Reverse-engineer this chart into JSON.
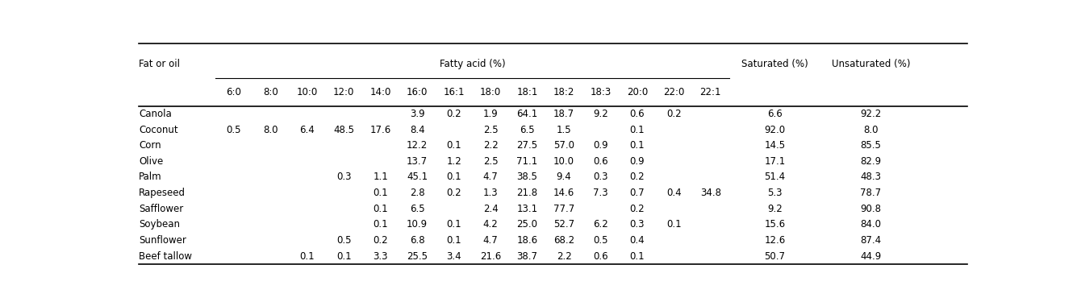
{
  "row_label": "Fat or oil",
  "fa_cols": [
    "6:0",
    "8:0",
    "10:0",
    "12:0",
    "14:0",
    "16:0",
    "16:1",
    "18:0",
    "18:1",
    "18:2",
    "18:3",
    "20:0",
    "22:0",
    "22:1"
  ],
  "rows": [
    {
      "name": "Canola",
      "6:0": "",
      "8:0": "",
      "10:0": "",
      "12:0": "",
      "14:0": "",
      "16:0": "3.9",
      "16:1": "0.2",
      "18:0": "1.9",
      "18:1": "64.1",
      "18:2": "18.7",
      "18:3": "9.2",
      "20:0": "0.6",
      "22:0": "0.2",
      "22:1": "",
      "sat": "6.6",
      "unsat": "92.2"
    },
    {
      "name": "Coconut",
      "6:0": "0.5",
      "8:0": "8.0",
      "10:0": "6.4",
      "12:0": "48.5",
      "14:0": "17.6",
      "16:0": "8.4",
      "16:1": "",
      "18:0": "2.5",
      "18:1": "6.5",
      "18:2": "1.5",
      "18:3": "",
      "20:0": "0.1",
      "22:0": "",
      "22:1": "",
      "sat": "92.0",
      "unsat": "8.0"
    },
    {
      "name": "Corn",
      "6:0": "",
      "8:0": "",
      "10:0": "",
      "12:0": "",
      "14:0": "",
      "16:0": "12.2",
      "16:1": "0.1",
      "18:0": "2.2",
      "18:1": "27.5",
      "18:2": "57.0",
      "18:3": "0.9",
      "20:0": "0.1",
      "22:0": "",
      "22:1": "",
      "sat": "14.5",
      "unsat": "85.5"
    },
    {
      "name": "Olive",
      "6:0": "",
      "8:0": "",
      "10:0": "",
      "12:0": "",
      "14:0": "",
      "16:0": "13.7",
      "16:1": "1.2",
      "18:0": "2.5",
      "18:1": "71.1",
      "18:2": "10.0",
      "18:3": "0.6",
      "20:0": "0.9",
      "22:0": "",
      "22:1": "",
      "sat": "17.1",
      "unsat": "82.9"
    },
    {
      "name": "Palm",
      "6:0": "",
      "8:0": "",
      "10:0": "",
      "12:0": "0.3",
      "14:0": "1.1",
      "16:0": "45.1",
      "16:1": "0.1",
      "18:0": "4.7",
      "18:1": "38.5",
      "18:2": "9.4",
      "18:3": "0.3",
      "20:0": "0.2",
      "22:0": "",
      "22:1": "",
      "sat": "51.4",
      "unsat": "48.3"
    },
    {
      "name": "Rapeseed",
      "6:0": "",
      "8:0": "",
      "10:0": "",
      "12:0": "",
      "14:0": "0.1",
      "16:0": "2.8",
      "16:1": "0.2",
      "18:0": "1.3",
      "18:1": "21.8",
      "18:2": "14.6",
      "18:3": "7.3",
      "20:0": "0.7",
      "22:0": "0.4",
      "22:1": "34.8",
      "sat": "5.3",
      "unsat": "78.7"
    },
    {
      "name": "Safflower",
      "6:0": "",
      "8:0": "",
      "10:0": "",
      "12:0": "",
      "14:0": "0.1",
      "16:0": "6.5",
      "16:1": "",
      "18:0": "2.4",
      "18:1": "13.1",
      "18:2": "77.7",
      "18:3": "",
      "20:0": "0.2",
      "22:0": "",
      "22:1": "",
      "sat": "9.2",
      "unsat": "90.8"
    },
    {
      "name": "Soybean",
      "6:0": "",
      "8:0": "",
      "10:0": "",
      "12:0": "",
      "14:0": "0.1",
      "16:0": "10.9",
      "16:1": "0.1",
      "18:0": "4.2",
      "18:1": "25.0",
      "18:2": "52.7",
      "18:3": "6.2",
      "20:0": "0.3",
      "22:0": "0.1",
      "22:1": "",
      "sat": "15.6",
      "unsat": "84.0"
    },
    {
      "name": "Sunflower",
      "6:0": "",
      "8:0": "",
      "10:0": "",
      "12:0": "0.5",
      "14:0": "0.2",
      "16:0": "6.8",
      "16:1": "0.1",
      "18:0": "4.7",
      "18:1": "18.6",
      "18:2": "68.2",
      "18:3": "0.5",
      "20:0": "0.4",
      "22:0": "",
      "22:1": "",
      "sat": "12.6",
      "unsat": "87.4"
    },
    {
      "name": "Beef tallow",
      "6:0": "",
      "8:0": "",
      "10:0": "0.1",
      "12:0": "0.1",
      "14:0": "3.3",
      "16:0": "25.5",
      "16:1": "3.4",
      "18:0": "21.6",
      "18:1": "38.7",
      "18:2": "2.2",
      "18:3": "0.6",
      "20:0": "0.1",
      "22:0": "",
      "22:1": "",
      "sat": "50.7",
      "unsat": "44.9"
    }
  ],
  "bg_color": "#ffffff",
  "text_color": "#000000",
  "font_size": 8.5
}
